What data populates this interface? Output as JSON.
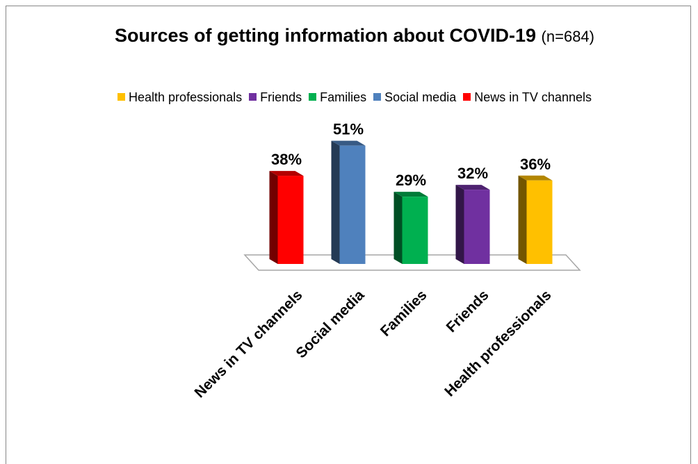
{
  "chart_data": {
    "type": "bar",
    "title": "Sources of getting information about COVID-19",
    "subtitle": "(n=684)",
    "categories": [
      "News in TV channels",
      "Social media",
      "Families",
      "Friends",
      "Health professionals"
    ],
    "values": [
      38,
      51,
      29,
      32,
      36
    ],
    "value_labels": [
      "38%",
      "51%",
      "29%",
      "32%",
      "36%"
    ],
    "colors": [
      "#ff0000",
      "#4f81bd",
      "#00b050",
      "#7030a0",
      "#ffc000"
    ],
    "legend": [
      {
        "label": "Health professionals",
        "color": "#ffc000"
      },
      {
        "label": "Friends",
        "color": "#7030a0"
      },
      {
        "label": "Families",
        "color": "#00b050"
      },
      {
        "label": "Social media",
        "color": "#4f81bd"
      },
      {
        "label": "News in TV channels",
        "color": "#ff0000"
      }
    ],
    "legend_position": "top",
    "unit": "%",
    "style": "3d-bar",
    "grid": false,
    "ylim": [
      0,
      60
    ]
  }
}
